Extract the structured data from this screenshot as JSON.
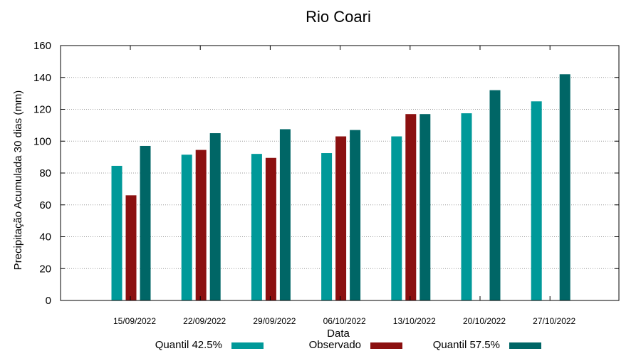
{
  "chart_data": {
    "type": "bar",
    "title": "Rio Coari",
    "xlabel": "Data",
    "ylabel": "Precipitação Acumulada 30 dias (mm)",
    "ylim": [
      0,
      160
    ],
    "yticks": [
      0,
      20,
      40,
      60,
      80,
      100,
      120,
      140,
      160
    ],
    "grid": true,
    "legend_position": "bottom",
    "categories": [
      "15/09/2022",
      "22/09/2022",
      "29/09/2022",
      "06/10/2022",
      "13/10/2022",
      "20/10/2022",
      "27/10/2022"
    ],
    "series": [
      {
        "name": "Quantil 42.5%",
        "color": "#009999",
        "values": [
          84.5,
          91.5,
          92,
          92.5,
          103,
          117.5,
          125
        ]
      },
      {
        "name": "Observado",
        "color": "#8b1010",
        "values": [
          66,
          94.5,
          89.5,
          103,
          117,
          null,
          null
        ]
      },
      {
        "name": "Quantil 57.5%",
        "color": "#006666",
        "values": [
          97,
          105,
          107.5,
          107,
          117,
          132,
          142
        ]
      }
    ]
  }
}
